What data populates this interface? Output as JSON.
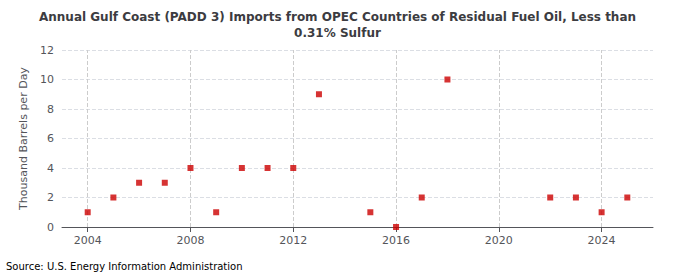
{
  "chart_data": {
    "type": "scatter",
    "title": "Annual Gulf Coast (PADD 3) Imports from OPEC Countries of Residual Fuel Oil, Less than\n0.31% Sulfur",
    "ylabel": "Thousand Barrels per Day",
    "source": "Source: U.S. Energy Information Administration",
    "x": [
      2004,
      2005,
      2006,
      2007,
      2008,
      2009,
      2010,
      2011,
      2012,
      2013,
      2015,
      2016,
      2017,
      2018,
      2022,
      2023,
      2024,
      2025
    ],
    "values": [
      1,
      2,
      3,
      3,
      4,
      1,
      4,
      4,
      4,
      9,
      1,
      0,
      2,
      10,
      2,
      2,
      1,
      2
    ],
    "color": "#cc0000",
    "marker": "square",
    "xlim": [
      2003,
      2026
    ],
    "xticks": [
      2004,
      2008,
      2012,
      2016,
      2020,
      2024
    ],
    "ylim": [
      0,
      12
    ],
    "yticks": [
      0,
      2,
      4,
      6,
      8,
      10,
      12
    ],
    "grid": true
  }
}
